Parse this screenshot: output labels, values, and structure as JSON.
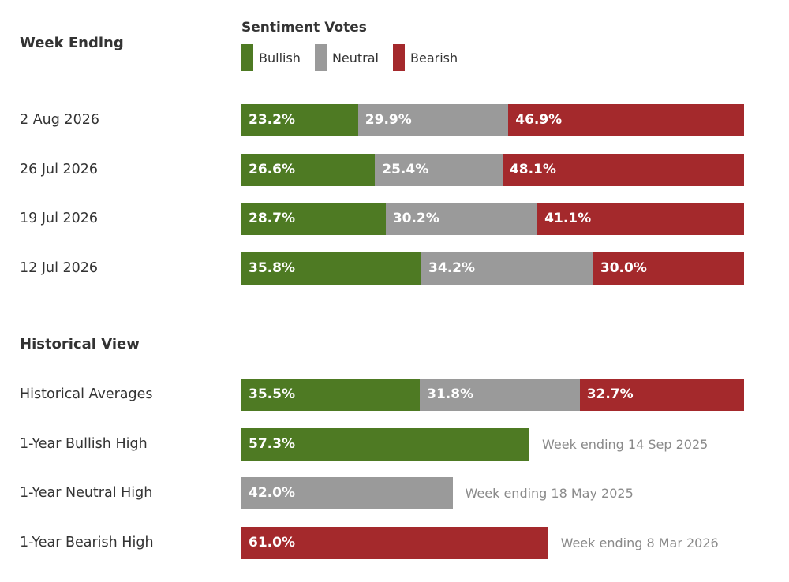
{
  "colors": {
    "bullish": "#4e7a23",
    "neutral": "#9a9a9a",
    "bearish": "#a4292c"
  },
  "header": {
    "week_ending": "Week Ending",
    "historical_view": "Historical View"
  },
  "chart_data": {
    "type": "bar",
    "title": "Sentiment Votes",
    "orientation": "horizontal",
    "stacked": true,
    "xlim": [
      0,
      100
    ],
    "legend_position": "top",
    "legend": [
      "Bullish",
      "Neutral",
      "Bearish"
    ],
    "weekly": {
      "categories": [
        "2 Aug 2026",
        "26 Jul 2026",
        "19 Jul 2026",
        "12 Jul 2026"
      ],
      "series": [
        {
          "name": "Bullish",
          "values": [
            23.2,
            26.6,
            28.7,
            35.8
          ],
          "labels": [
            "23.2%",
            "26.6%",
            "28.7%",
            "35.8%"
          ]
        },
        {
          "name": "Neutral",
          "values": [
            29.9,
            25.4,
            30.2,
            34.2
          ],
          "labels": [
            "29.9%",
            "25.4%",
            "30.2%",
            "34.2%"
          ]
        },
        {
          "name": "Bearish",
          "values": [
            46.9,
            48.1,
            41.1,
            30.0
          ],
          "labels": [
            "46.9%",
            "48.1%",
            "41.1%",
            "30.0%"
          ]
        }
      ]
    },
    "historical_averages": {
      "category": "Historical Averages",
      "values": [
        35.5,
        31.8,
        32.7
      ],
      "labels": [
        "35.5%",
        "31.8%",
        "32.7%"
      ]
    },
    "highs": [
      {
        "category": "1-Year Bullish High",
        "series": "bullish",
        "value": 57.3,
        "label": "57.3%",
        "note": "Week ending 14 Sep 2025"
      },
      {
        "category": "1-Year Neutral High",
        "series": "neutral",
        "value": 42.0,
        "label": "42.0%",
        "note": "Week ending 18 May 2025"
      },
      {
        "category": "1-Year Bearish High",
        "series": "bearish",
        "value": 61.0,
        "label": "61.0%",
        "note": "Week ending 8 Mar 2026"
      }
    ]
  }
}
